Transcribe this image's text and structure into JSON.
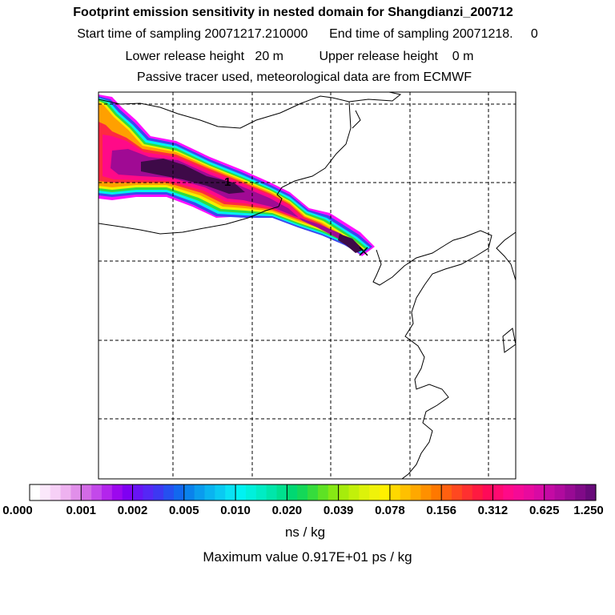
{
  "chart_data": {
    "type": "heatmap",
    "title": "Footprint emission sensitivity in nested domain for Shangdianzi_200712",
    "subtitle_lines": [
      "Start time of sampling 20071217.210000      End time of sampling 20071218.     0",
      "Lower release height   20 m          Upper release height    0 m",
      "Passive tracer used, meteorological data are from ECMWF"
    ],
    "colorbar": {
      "tick_labels": [
        "0.000",
        "0.001",
        "0.002",
        "0.005",
        "0.010",
        "0.020",
        "0.039",
        "0.078",
        "0.156",
        "0.312",
        "0.625",
        "1.250"
      ],
      "units": "ns / kg",
      "segment_colors": [
        [
          "#ffffff",
          "#fbe8fb",
          "#f6d0f6",
          "#eeb2f0",
          "#e18fea"
        ],
        [
          "#d36be6",
          "#c349ea",
          "#b325ec",
          "#9c08ee",
          "#7f00f2"
        ],
        [
          "#6814f4",
          "#5527f5",
          "#3d38f2",
          "#2550f0",
          "#1268ee"
        ],
        [
          "#0a82ec",
          "#0a9cee",
          "#0ab4f0",
          "#0acaf2",
          "#0ae2f4"
        ],
        [
          "#00f2f2",
          "#00f0dc",
          "#00ecc4",
          "#00e6aa",
          "#00e08e"
        ],
        [
          "#00d872",
          "#14d858",
          "#36dc3c",
          "#5ee224",
          "#86e814"
        ],
        [
          "#a6ec0c",
          "#c2f00a",
          "#dcf20a",
          "#f0f20a",
          "#fff000"
        ],
        [
          "#ffd800",
          "#ffc000",
          "#ffa800",
          "#ff9000",
          "#ff7800"
        ],
        [
          "#ff6010",
          "#ff4820",
          "#ff3030",
          "#ff1a40",
          "#ff0a58"
        ],
        [
          "#ff0a70",
          "#ff0a88",
          "#f50a96",
          "#e80a9e",
          "#d80aa4"
        ],
        [
          "#c40aa4",
          "#b00a9e",
          "#980a94",
          "#800a88",
          "#680a7a"
        ]
      ]
    },
    "map_annotations": [
      "1"
    ],
    "max_value_text": "Maximum value  0.917E+01 ps / kg",
    "grid": "dashed"
  },
  "colors": {
    "frame": "#000000",
    "grid": "#000000",
    "coast": "#000000",
    "plume_outer": "#ff00ff",
    "plume_core": "#3a0a44"
  }
}
